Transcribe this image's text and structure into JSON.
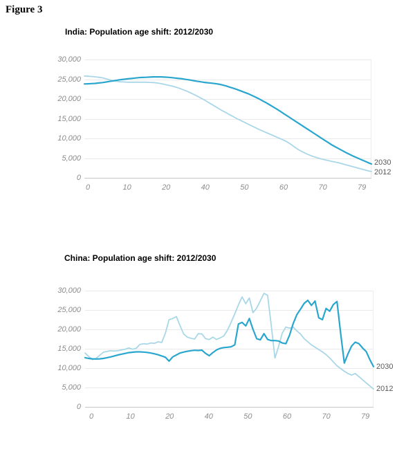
{
  "figure_label": "Figure 3",
  "chart_data": [
    {
      "id": "india",
      "type": "line",
      "title": "India: Population age shift: 2012/2030",
      "xlabel": "",
      "ylabel": "",
      "ylim": [
        0,
        30000
      ],
      "grid": "horizontal",
      "legend_position": "line-end-right",
      "y_ticks": [
        "30,000",
        "25,000",
        "20,000",
        "15,000",
        "10,000",
        "5,000",
        "0"
      ],
      "x_ticks": [
        "0",
        "10",
        "20",
        "40",
        "50",
        "60",
        "70",
        "79"
      ],
      "x": "age 0-79 (one point per year of age)",
      "series": [
        {
          "name": "2012",
          "color": "#a9d7e8",
          "values": [
            25800,
            25750,
            25700,
            25600,
            25500,
            25350,
            25100,
            24850,
            24600,
            24450,
            24350,
            24300,
            24250,
            24250,
            24250,
            24250,
            24250,
            24250,
            24200,
            24150,
            24050,
            23900,
            23700,
            23500,
            23300,
            23050,
            22750,
            22400,
            22050,
            21650,
            21200,
            20750,
            20250,
            19750,
            19200,
            18650,
            18100,
            17550,
            17000,
            16500,
            16000,
            15500,
            15000,
            14550,
            14100,
            13650,
            13200,
            12750,
            12300,
            11900,
            11500,
            11100,
            10700,
            10300,
            9900,
            9500,
            9000,
            8400,
            7700,
            7100,
            6600,
            6150,
            5750,
            5400,
            5100,
            4850,
            4600,
            4400,
            4200,
            4000,
            3800,
            3550,
            3300,
            3050,
            2800,
            2550,
            2300,
            2050,
            1800,
            1600
          ]
        },
        {
          "name": "2030",
          "color": "#29a6ce",
          "values": [
            23800,
            23850,
            23900,
            23950,
            24050,
            24150,
            24300,
            24450,
            24600,
            24750,
            24900,
            25000,
            25100,
            25200,
            25300,
            25400,
            25450,
            25500,
            25550,
            25600,
            25600,
            25600,
            25550,
            25500,
            25400,
            25300,
            25200,
            25100,
            24950,
            24800,
            24650,
            24500,
            24350,
            24200,
            24100,
            24000,
            23900,
            23750,
            23550,
            23300,
            23000,
            22700,
            22400,
            22050,
            21700,
            21350,
            20950,
            20500,
            20050,
            19550,
            19050,
            18500,
            17950,
            17400,
            16800,
            16200,
            15600,
            15000,
            14400,
            13800,
            13200,
            12600,
            12000,
            11400,
            10800,
            10200,
            9600,
            9000,
            8400,
            7900,
            7400,
            6900,
            6400,
            5950,
            5500,
            5100,
            4700,
            4300,
            3900,
            3500
          ]
        }
      ]
    },
    {
      "id": "china",
      "type": "line",
      "title": "China: Population age shift: 2012/2030",
      "xlabel": "",
      "ylabel": "",
      "ylim": [
        0,
        30000
      ],
      "grid": "horizontal",
      "legend_position": "line-end-right",
      "y_ticks": [
        "30,000",
        "25,000",
        "20,000",
        "15,000",
        "10,000",
        "5,000",
        "0"
      ],
      "x_ticks": [
        "0",
        "10",
        "20",
        "40",
        "50",
        "60",
        "70",
        "79"
      ],
      "x": "age 0-79 (one point per year of age)",
      "series": [
        {
          "name": "2012",
          "color": "#a9d7e8",
          "values": [
            13900,
            13000,
            12200,
            12500,
            13300,
            14100,
            14300,
            14500,
            14400,
            14500,
            14700,
            14900,
            15200,
            14900,
            15100,
            16100,
            16300,
            16200,
            16500,
            16400,
            16800,
            16600,
            19000,
            22500,
            22800,
            23300,
            21000,
            18800,
            18000,
            17700,
            17500,
            18900,
            18800,
            17600,
            17400,
            18000,
            17400,
            17800,
            18300,
            19800,
            21800,
            24000,
            26300,
            28400,
            26600,
            28100,
            24300,
            25500,
            27400,
            29300,
            28800,
            21000,
            12600,
            15600,
            19000,
            20600,
            20300,
            20600,
            19600,
            18800,
            17600,
            16800,
            16000,
            15400,
            14800,
            14200,
            13500,
            12600,
            11600,
            10600,
            9900,
            9200,
            8600,
            8200,
            8600,
            7800,
            7000,
            6200,
            5400,
            4600
          ]
        },
        {
          "name": "2030",
          "color": "#29a6ce",
          "values": [
            12700,
            12500,
            12400,
            12350,
            12400,
            12500,
            12700,
            12900,
            13150,
            13400,
            13600,
            13800,
            14000,
            14100,
            14200,
            14200,
            14150,
            14050,
            13900,
            13700,
            13450,
            13150,
            12800,
            11800,
            12900,
            13400,
            13900,
            14150,
            14350,
            14500,
            14600,
            14550,
            14650,
            13800,
            13200,
            14000,
            14700,
            15100,
            15300,
            15400,
            15500,
            16000,
            21400,
            21800,
            20900,
            22800,
            20000,
            17600,
            17300,
            18900,
            17400,
            17100,
            17100,
            17000,
            16500,
            16300,
            18500,
            21500,
            23800,
            25200,
            26700,
            27500,
            26200,
            27300,
            23000,
            22500,
            25400,
            24700,
            26400,
            27200,
            19000,
            11300,
            13700,
            15700,
            16700,
            16300,
            15200,
            14300,
            12200,
            10400
          ]
        }
      ]
    }
  ]
}
